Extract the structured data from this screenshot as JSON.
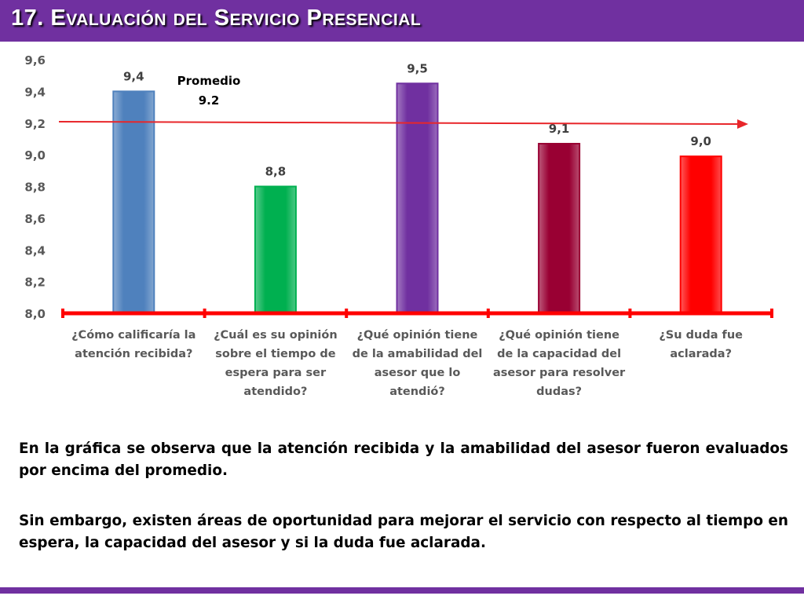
{
  "title": {
    "number": "17.",
    "word1_initial": "E",
    "word1_rest": "VALUACIÓN",
    "word2": "DEL",
    "word3_initial": "S",
    "word3_rest": "ERVICIO",
    "word4_initial": "P",
    "word4_rest": "RESENCIAL"
  },
  "chart_data": {
    "type": "bar",
    "categories": [
      [
        "¿Cómo calificaría la",
        "atención recibida?"
      ],
      [
        "¿Cuál es su opinión",
        "sobre el tiempo de",
        "espera para ser",
        "atendido?"
      ],
      [
        "¿Qué opinión tiene",
        "de la amabilidad del",
        "asesor que lo",
        "atendió?"
      ],
      [
        "¿Qué opinión tiene",
        "de la capacidad del",
        "asesor para resolver",
        "dudas?"
      ],
      [
        "¿Su duda fue",
        "aclarada?"
      ]
    ],
    "values": [
      9.4,
      8.8,
      9.45,
      9.07,
      8.99
    ],
    "data_labels": [
      "9,4",
      "8,8",
      "9,5",
      "9,1",
      "9,0"
    ],
    "colors": [
      "#4f81bd",
      "#00b050",
      "#7030a0",
      "#990033",
      "#ff0000"
    ],
    "ylim": [
      8.0,
      9.6
    ],
    "yticks": [
      "8,0",
      "8,2",
      "8,4",
      "8,6",
      "8,8",
      "9,0",
      "9,2",
      "9,4",
      "9,6"
    ],
    "average": {
      "value": 9.2,
      "label_line1": "Promedio",
      "label_line2": "9.2",
      "color": "#e8262a"
    },
    "axis_color": "#ff0000"
  },
  "paragraphs": {
    "p1": "En la gráfica se observa que la atención recibida y la amabilidad  del asesor fueron evaluados por encima del promedio.",
    "p2": "Sin embargo, existen áreas de oportunidad para mejorar el servicio con respecto al tiempo en espera, la capacidad del asesor y si la duda fue aclarada."
  }
}
